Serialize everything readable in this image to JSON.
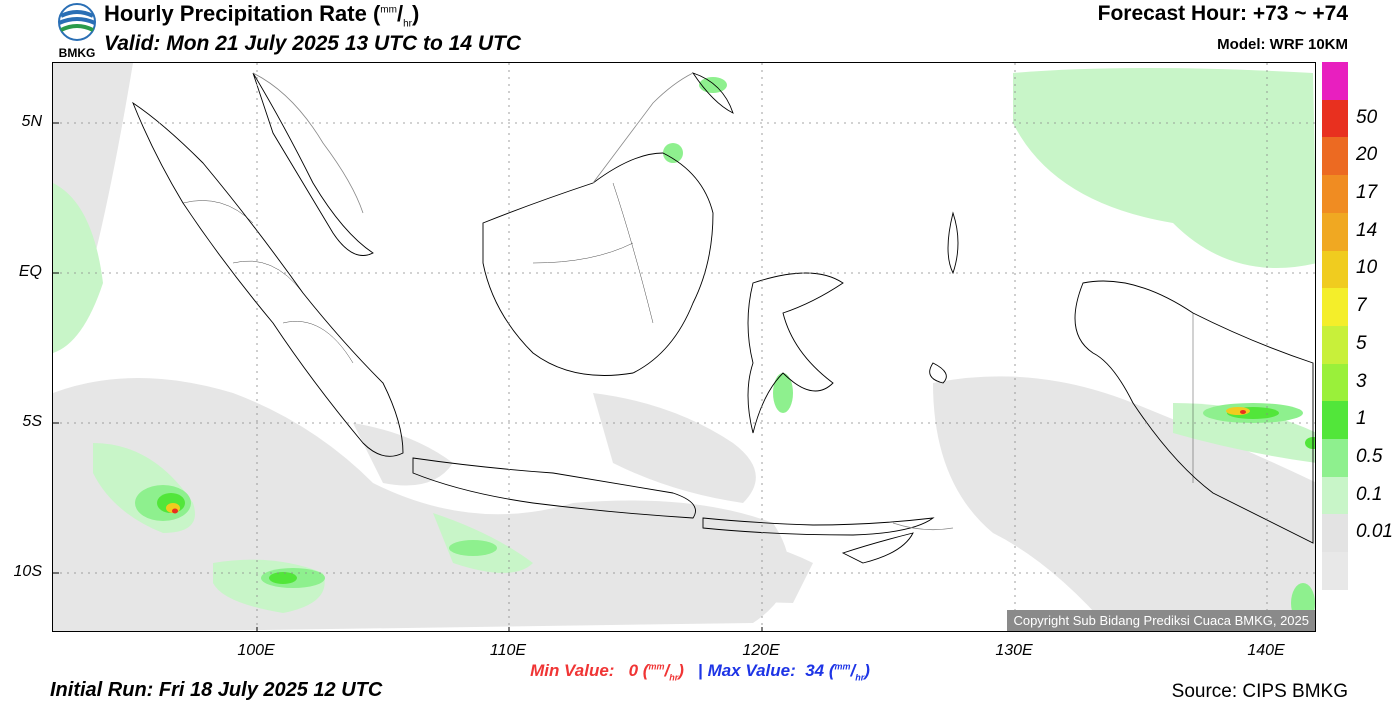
{
  "header": {
    "logo_text": "BMKG",
    "title": "Hourly Precipitation Rate (",
    "title_unit_top": "mm",
    "title_unit_bottom": "hr",
    "title_close": ")",
    "valid": "Valid: Mon 21 July 2025 13 UTC to 14 UTC",
    "forecast_hour": "Forecast Hour: +73 ~ +74",
    "model": "Model: WRF 10KM"
  },
  "map": {
    "lat_labels": [
      "5N",
      "EQ",
      "5S",
      "10S"
    ],
    "lon_labels": [
      "100E",
      "110E",
      "120E",
      "130E",
      "140E"
    ],
    "copyright": "Copyright Sub Bidang Prediksi Cuaca BMKG, 2025"
  },
  "colorbar": {
    "labels": [
      "50",
      "20",
      "17",
      "14",
      "10",
      "7",
      "5",
      "3",
      "1",
      "0.5",
      "0.1",
      "0.01"
    ],
    "colors": [
      "#e81fbf",
      "#e8301f",
      "#ec6a22",
      "#f08c22",
      "#f0a822",
      "#f0cc1f",
      "#f4ee2a",
      "#c8f03a",
      "#9af03a",
      "#52e63a",
      "#8ef08e",
      "#c8f5c8",
      "#e3e3e3",
      "#e8e8e8"
    ]
  },
  "footer": {
    "min_label": "Min Value:",
    "min_value": "0 (",
    "max_label": "Max Value:",
    "max_value": "34 (",
    "unit_top": "mm",
    "unit_bottom": "hr",
    "unit_close": ")",
    "separator": "|",
    "initial_run": "Initial Run: Fri 18 July 2025 12 UTC",
    "source": "Source: CIPS BMKG"
  }
}
